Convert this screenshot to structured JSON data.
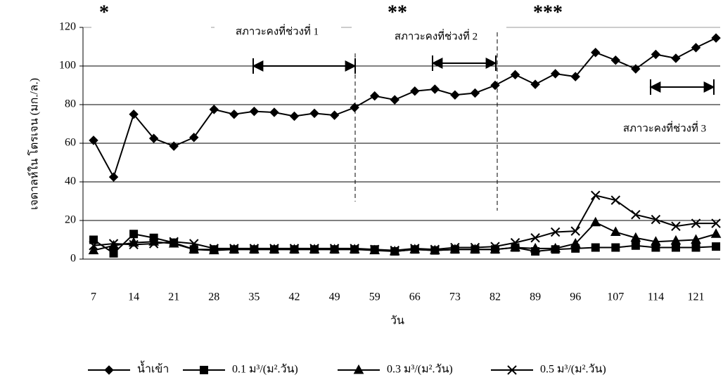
{
  "chart_data": {
    "type": "line",
    "y_label": "เจดาลห์ใน โตรเจน (มก./ล.)",
    "x_label": "วัน",
    "categories": [
      "7",
      null,
      "14",
      null,
      "21",
      null,
      "28",
      null,
      "35",
      null,
      "42",
      null,
      "49",
      null,
      "59",
      null,
      "66",
      null,
      "73",
      null,
      "82",
      null,
      "89",
      null,
      "96",
      null,
      "107",
      null,
      "114",
      null,
      "121",
      null
    ],
    "series": [
      {
        "name": "น้ำเข้า",
        "color": "#000000",
        "marker": "diamond",
        "values": [
          61.5,
          42.5,
          75,
          62.5,
          58.5,
          63,
          77.5,
          75,
          76.5,
          76,
          74,
          75.5,
          74.5,
          78.5,
          84.5,
          82.5,
          87,
          88,
          85,
          86,
          90,
          95.5,
          90.5,
          96,
          94.5,
          107,
          103,
          98.5,
          106,
          104,
          109.5,
          114.5
        ]
      },
      {
        "name": "0.1 ม³/(ม².วัน)",
        "color": "#000000",
        "marker": "square",
        "values": [
          10,
          3,
          13,
          11,
          8.5,
          5,
          5,
          5,
          5,
          5,
          5,
          5,
          5,
          5,
          5,
          4,
          5,
          4.5,
          5,
          5,
          5,
          6,
          4,
          5,
          5.5,
          6,
          6,
          7,
          6,
          6,
          6,
          6.5
        ]
      },
      {
        "name": "0.3 ม³/(ม².วัน)",
        "color": "#000000",
        "marker": "triangle",
        "values": [
          4.5,
          7,
          8.5,
          9,
          8,
          5,
          4.5,
          5,
          5,
          5,
          5,
          5,
          5,
          5,
          4.5,
          4,
          5,
          4.5,
          5,
          5,
          5,
          6,
          5.5,
          5.5,
          8,
          19,
          14,
          11,
          9,
          9.5,
          10,
          13
        ]
      },
      {
        "name": "0.5 ม³/(ม².วัน)",
        "color": "#000000",
        "marker": "x",
        "values": [
          7,
          8,
          7.5,
          8,
          9,
          8,
          5.5,
          5.5,
          5.5,
          5.5,
          5.5,
          5.5,
          5.5,
          5.5,
          5,
          4.5,
          5.5,
          5,
          6,
          6,
          6.5,
          8.5,
          11,
          14,
          14.5,
          33,
          30.5,
          23,
          20.5,
          17,
          18.5,
          18.5
        ]
      }
    ],
    "ylim": [
      0,
      120
    ],
    "yticks": [
      0,
      20,
      40,
      60,
      80,
      100,
      120
    ],
    "grid": true,
    "annotations": [
      "*",
      "**",
      "***",
      "สภาวะคงที่ช่วงที่ 1",
      "สภาวะคงที่ช่วงที่ 2",
      "สภาวะคงที่ช่วงที่ 3"
    ]
  }
}
